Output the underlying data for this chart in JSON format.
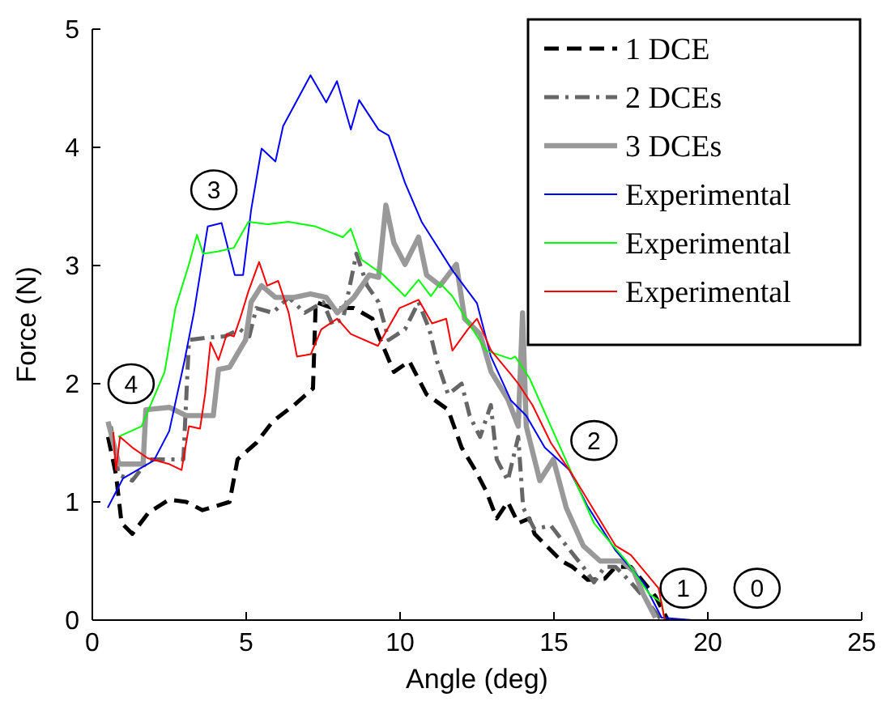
{
  "chart_data": {
    "type": "line",
    "xlabel": "Angle (deg)",
    "ylabel": "Force (N)",
    "xlim": [
      0,
      25
    ],
    "xticks": [
      0,
      5,
      10,
      15,
      20,
      25
    ],
    "ylim": [
      0,
      5
    ],
    "yticks": [
      0,
      1,
      2,
      3,
      4,
      5
    ],
    "grid": false,
    "legend": "top right",
    "annotations": [
      {
        "text": "4",
        "x": 1.26,
        "y": 2.0
      },
      {
        "text": "3",
        "x": 3.95,
        "y": 3.64
      },
      {
        "text": "2",
        "x": 16.3,
        "y": 1.52
      },
      {
        "text": "1",
        "x": 19.2,
        "y": 0.27
      },
      {
        "text": "0",
        "x": 21.6,
        "y": 0.27
      }
    ],
    "series": [
      {
        "name": "1 DCE",
        "color": "#000000",
        "line_style": "dashed",
        "x": [
          0.51,
          0.77,
          0.95,
          1.3,
          1.83,
          2.5,
          3.05,
          3.58,
          4.46,
          4.72,
          5.33,
          5.86,
          6.56,
          7.17,
          7.26,
          7.8,
          8.5,
          9.1,
          9.28,
          9.8,
          10.3,
          10.86,
          11.56,
          12,
          12.44,
          12.8,
          13.14,
          13.5,
          13.84,
          14.2,
          14.37,
          14.9,
          15.25,
          15.6,
          16.1,
          16.65,
          17,
          17.5,
          18.3,
          18.7
        ],
        "values": [
          1.55,
          1.23,
          0.82,
          0.73,
          0.91,
          1.02,
          1.0,
          0.93,
          1.0,
          1.36,
          1.5,
          1.68,
          1.82,
          1.96,
          2.69,
          2.64,
          2.64,
          2.55,
          2.42,
          2.1,
          2.19,
          1.91,
          1.78,
          1.46,
          1.27,
          1.09,
          0.86,
          1.0,
          0.82,
          0.86,
          0.73,
          0.59,
          0.5,
          0.45,
          0.34,
          0.35,
          0.45,
          0.45,
          0.2,
          0
        ]
      },
      {
        "name": "2 DCEs",
        "color": "#666666",
        "line_style": "dashdot",
        "x": [
          0.6,
          0.86,
          1.3,
          1.83,
          2.5,
          2.96,
          3.14,
          3.75,
          4.3,
          4.8,
          5.1,
          5.33,
          5.86,
          6.38,
          6.9,
          7.5,
          7.8,
          8.15,
          8.58,
          8.93,
          9.3,
          9.63,
          10.16,
          10.6,
          10.95,
          11.2,
          11.56,
          12,
          12.26,
          12.6,
          12.95,
          13.14,
          13.5,
          13.84,
          14.0,
          14.37,
          14.9,
          15.4,
          15.95,
          16.3,
          16.65,
          17,
          17.5,
          17.96,
          18.5
        ],
        "values": [
          1.64,
          1.23,
          1.18,
          1.36,
          1.36,
          1.36,
          2.37,
          2.39,
          2.4,
          2.46,
          2.4,
          2.64,
          2.6,
          2.73,
          2.6,
          2.69,
          2.5,
          2.55,
          3.1,
          2.83,
          2.69,
          2.37,
          2.46,
          2.69,
          2.46,
          2.19,
          1.91,
          2.0,
          1.73,
          1.55,
          1.82,
          1.36,
          1.18,
          1.55,
          0.95,
          0.77,
          0.8,
          0.63,
          0.45,
          0.32,
          0.45,
          0.45,
          0.32,
          0.18,
          0
        ]
      },
      {
        "name": "3 DCEs",
        "color": "#999999",
        "line_style": "solid",
        "x": [
          0.51,
          0.86,
          1.65,
          1.74,
          2.5,
          3.05,
          3.93,
          4.1,
          4.46,
          4.98,
          5.16,
          5.5,
          5.95,
          6.56,
          7.09,
          7.6,
          7.96,
          8.5,
          9.0,
          9.3,
          9.54,
          9.8,
          10.16,
          10.6,
          10.86,
          11.3,
          11.83,
          12.1,
          12.6,
          12.96,
          13.5,
          13.84,
          13.98,
          14.1,
          14.54,
          14.98,
          15.4,
          15.95,
          16.5,
          17.2,
          17.6,
          17.9,
          18.3
        ],
        "values": [
          1.68,
          1.32,
          1.32,
          1.78,
          1.8,
          1.73,
          1.73,
          2.12,
          2.14,
          2.37,
          2.69,
          2.83,
          2.73,
          2.73,
          2.76,
          2.73,
          2.6,
          2.73,
          2.92,
          2.9,
          3.51,
          3.19,
          3.01,
          3.24,
          2.92,
          2.83,
          3.01,
          2.55,
          2.42,
          2.1,
          1.87,
          1.64,
          2.6,
          1.64,
          1.18,
          1.36,
          0.95,
          0.63,
          0.5,
          0.5,
          0.41,
          0.22,
          0.02
        ]
      },
      {
        "name": "Experimental",
        "color": "#0000ff",
        "line_style": "solid",
        "x": [
          0.5,
          1,
          2,
          2.5,
          3,
          3.3,
          3.75,
          4.2,
          4.63,
          4.9,
          5.16,
          5.5,
          5.95,
          6.2,
          7.09,
          7.6,
          7.95,
          8.4,
          8.67,
          9.3,
          9.63,
          10.16,
          10.7,
          11.7,
          12.5,
          12.95,
          13.6,
          14.1,
          14.7,
          15.5,
          16.1,
          17,
          17.9,
          18.5,
          19.5
        ],
        "values": [
          0.95,
          1.2,
          1.35,
          1.6,
          2.2,
          2.6,
          3.33,
          3.36,
          2.92,
          2.92,
          3.47,
          3.99,
          3.88,
          4.18,
          4.61,
          4.38,
          4.56,
          4.15,
          4.4,
          4.15,
          4.1,
          3.7,
          3.37,
          2.96,
          2.68,
          2.23,
          1.86,
          1.73,
          1.46,
          1.27,
          0.96,
          0.59,
          0.32,
          0.02,
          0
        ]
      },
      {
        "name": "Experimental",
        "color": "#00ff00",
        "line_style": "solid",
        "x": [
          0.84,
          1.6,
          2.35,
          2.7,
          3.14,
          3.4,
          3.6,
          4.1,
          4.6,
          5.07,
          5.7,
          6.37,
          7.26,
          8.14,
          8.4,
          8.75,
          9.46,
          10.16,
          10.6,
          11,
          11.3,
          11.7,
          12.26,
          12.8,
          13.6,
          13.74,
          14.2,
          14.9,
          15.6,
          16.3,
          17.35,
          18.1,
          18.5,
          18.6,
          21
        ],
        "values": [
          1.55,
          1.64,
          2.1,
          2.64,
          3.01,
          3.26,
          3.1,
          3.12,
          3.15,
          3.37,
          3.35,
          3.37,
          3.33,
          3.24,
          3.31,
          3.05,
          2.92,
          2.74,
          2.88,
          2.74,
          2.85,
          2.74,
          2.5,
          2.28,
          2.21,
          2.23,
          2.05,
          1.64,
          1.23,
          0.82,
          0.5,
          0.22,
          0.15,
          0,
          0
        ]
      },
      {
        "name": "Experimental",
        "color": "#ff0000",
        "line_style": "solid",
        "x": [
          0.68,
          0.77,
          0.9,
          1.3,
          1.8,
          2.5,
          2.9,
          3.14,
          3.5,
          3.67,
          3.84,
          4.1,
          4.37,
          4.6,
          4.8,
          5.07,
          5.42,
          5.68,
          6.04,
          6.38,
          6.65,
          7.1,
          7.44,
          7.96,
          8.4,
          9.28,
          9.98,
          10.6,
          11.04,
          11.5,
          11.7,
          12.2,
          12.5,
          12.96,
          13.6,
          13.84,
          14.3,
          14.9,
          15.6,
          17,
          17.5,
          18.4,
          18.6,
          20.5
        ],
        "values": [
          1.59,
          1.27,
          1.55,
          1.46,
          1.37,
          1.32,
          1.27,
          1.64,
          1.62,
          1.92,
          2.35,
          2.2,
          2.42,
          2.4,
          2.55,
          2.78,
          3.03,
          2.83,
          2.87,
          2.6,
          2.23,
          2.25,
          2.46,
          2.55,
          2.42,
          2.32,
          2.64,
          2.71,
          2.51,
          2.55,
          2.28,
          2.46,
          2.55,
          2.28,
          2.08,
          2.0,
          1.82,
          1.5,
          1.23,
          0.63,
          0.55,
          0.27,
          0,
          0
        ]
      }
    ]
  }
}
